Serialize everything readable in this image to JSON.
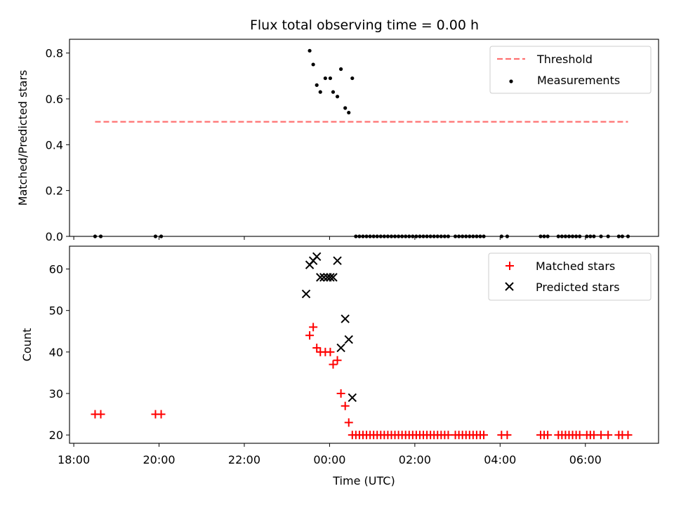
{
  "chart_data": [
    {
      "type": "scatter",
      "title": "Flux total observing time = 0.00 h",
      "xlabel": "",
      "ylabel": "Matched/Predicted stars",
      "xlim": [
        "17:54",
        "07:43"
      ],
      "ylim": [
        0,
        0.86
      ],
      "yticks": [
        "0.0",
        "0.2",
        "0.4",
        "0.6",
        "0.8"
      ],
      "xticks_shown": false,
      "legend_position": "top-right",
      "threshold": {
        "name": "Threshold",
        "value": 0.5,
        "x_start": "18:30",
        "x_end": "07:00",
        "color": "#ff7070",
        "style": "dashed"
      },
      "series": [
        {
          "name": "Measurements",
          "color": "#000000",
          "marker": "dot",
          "x": [
            "18:30",
            "18:38",
            "19:55",
            "20:03",
            "23:32",
            "23:37",
            "23:42",
            "23:47",
            "23:54",
            "00:01",
            "00:05",
            "00:11",
            "00:16",
            "00:22",
            "00:27",
            "00:32",
            "00:37",
            "00:42",
            "00:47",
            "00:52",
            "00:57",
            "01:02",
            "01:07",
            "01:12",
            "01:17",
            "01:22",
            "01:27",
            "01:32",
            "01:37",
            "01:42",
            "01:47",
            "01:52",
            "01:57",
            "02:02",
            "02:07",
            "02:12",
            "02:17",
            "02:22",
            "02:27",
            "02:32",
            "02:37",
            "02:42",
            "02:47",
            "02:57",
            "03:02",
            "03:07",
            "03:12",
            "03:17",
            "03:22",
            "03:27",
            "03:32",
            "03:37",
            "04:02",
            "04:10",
            "04:57",
            "05:02",
            "05:07",
            "05:22",
            "05:27",
            "05:32",
            "05:37",
            "05:42",
            "05:47",
            "05:52",
            "06:02",
            "06:07",
            "06:12",
            "06:22",
            "06:32",
            "06:47",
            "06:52",
            "07:00"
          ],
          "y": [
            0,
            0,
            0,
            0,
            0.81,
            0.75,
            0.66,
            0.63,
            0.69,
            0.69,
            0.63,
            0.61,
            0.73,
            0.56,
            0.54,
            0.69,
            0,
            0,
            0,
            0,
            0,
            0,
            0,
            0,
            0,
            0,
            0,
            0,
            0,
            0,
            0,
            0,
            0,
            0,
            0,
            0,
            0,
            0,
            0,
            0,
            0,
            0,
            0,
            0,
            0,
            0,
            0,
            0,
            0,
            0,
            0,
            0,
            0,
            0,
            0,
            0,
            0,
            0,
            0,
            0,
            0,
            0,
            0,
            0,
            0,
            0,
            0,
            0,
            0,
            0,
            0,
            0
          ]
        }
      ]
    },
    {
      "type": "scatter",
      "title": "",
      "xlabel": "Time (UTC)",
      "ylabel": "Count",
      "xlim": [
        "17:54",
        "07:43"
      ],
      "ylim": [
        18,
        65.5
      ],
      "yticks": [
        "20",
        "30",
        "40",
        "50",
        "60"
      ],
      "xticks": [
        "18:00",
        "20:00",
        "22:00",
        "00:00",
        "02:00",
        "04:00",
        "06:00"
      ],
      "legend_position": "top-right",
      "series": [
        {
          "name": "Matched stars",
          "color": "#ff0000",
          "marker": "plus",
          "x": [
            "18:30",
            "18:38",
            "19:55",
            "20:03",
            "23:32",
            "23:37",
            "23:42",
            "23:47",
            "23:54",
            "00:01",
            "00:05",
            "00:11",
            "00:16",
            "00:22",
            "00:27",
            "00:32",
            "00:37",
            "00:42",
            "00:47",
            "00:52",
            "00:57",
            "01:02",
            "01:07",
            "01:12",
            "01:17",
            "01:22",
            "01:27",
            "01:32",
            "01:37",
            "01:42",
            "01:47",
            "01:52",
            "01:57",
            "02:02",
            "02:07",
            "02:12",
            "02:17",
            "02:22",
            "02:27",
            "02:32",
            "02:37",
            "02:42",
            "02:47",
            "02:57",
            "03:02",
            "03:07",
            "03:12",
            "03:17",
            "03:22",
            "03:27",
            "03:32",
            "03:37",
            "04:02",
            "04:10",
            "04:57",
            "05:02",
            "05:07",
            "05:22",
            "05:27",
            "05:32",
            "05:37",
            "05:42",
            "05:47",
            "05:52",
            "06:02",
            "06:07",
            "06:12",
            "06:22",
            "06:32",
            "06:47",
            "06:52",
            "07:00"
          ],
          "y": [
            25,
            25,
            25,
            25,
            44,
            46,
            41,
            40,
            40,
            40,
            37,
            38,
            30,
            27,
            23,
            20,
            20,
            20,
            20,
            20,
            20,
            20,
            20,
            20,
            20,
            20,
            20,
            20,
            20,
            20,
            20,
            20,
            20,
            20,
            20,
            20,
            20,
            20,
            20,
            20,
            20,
            20,
            20,
            20,
            20,
            20,
            20,
            20,
            20,
            20,
            20,
            20,
            20,
            20,
            20,
            20,
            20,
            20,
            20,
            20,
            20,
            20,
            20,
            20,
            20,
            20,
            20,
            20,
            20,
            20,
            20,
            20
          ]
        },
        {
          "name": "Predicted stars",
          "color": "#000000",
          "marker": "x",
          "x": [
            "23:27",
            "23:32",
            "23:37",
            "23:42",
            "23:47",
            "23:52",
            "23:57",
            "00:01",
            "00:05",
            "00:11",
            "00:16",
            "00:22",
            "00:27",
            "00:32"
          ],
          "y": [
            54,
            61,
            62,
            63,
            58,
            58,
            58,
            58,
            58,
            62,
            41,
            48,
            43,
            29
          ]
        }
      ]
    }
  ]
}
